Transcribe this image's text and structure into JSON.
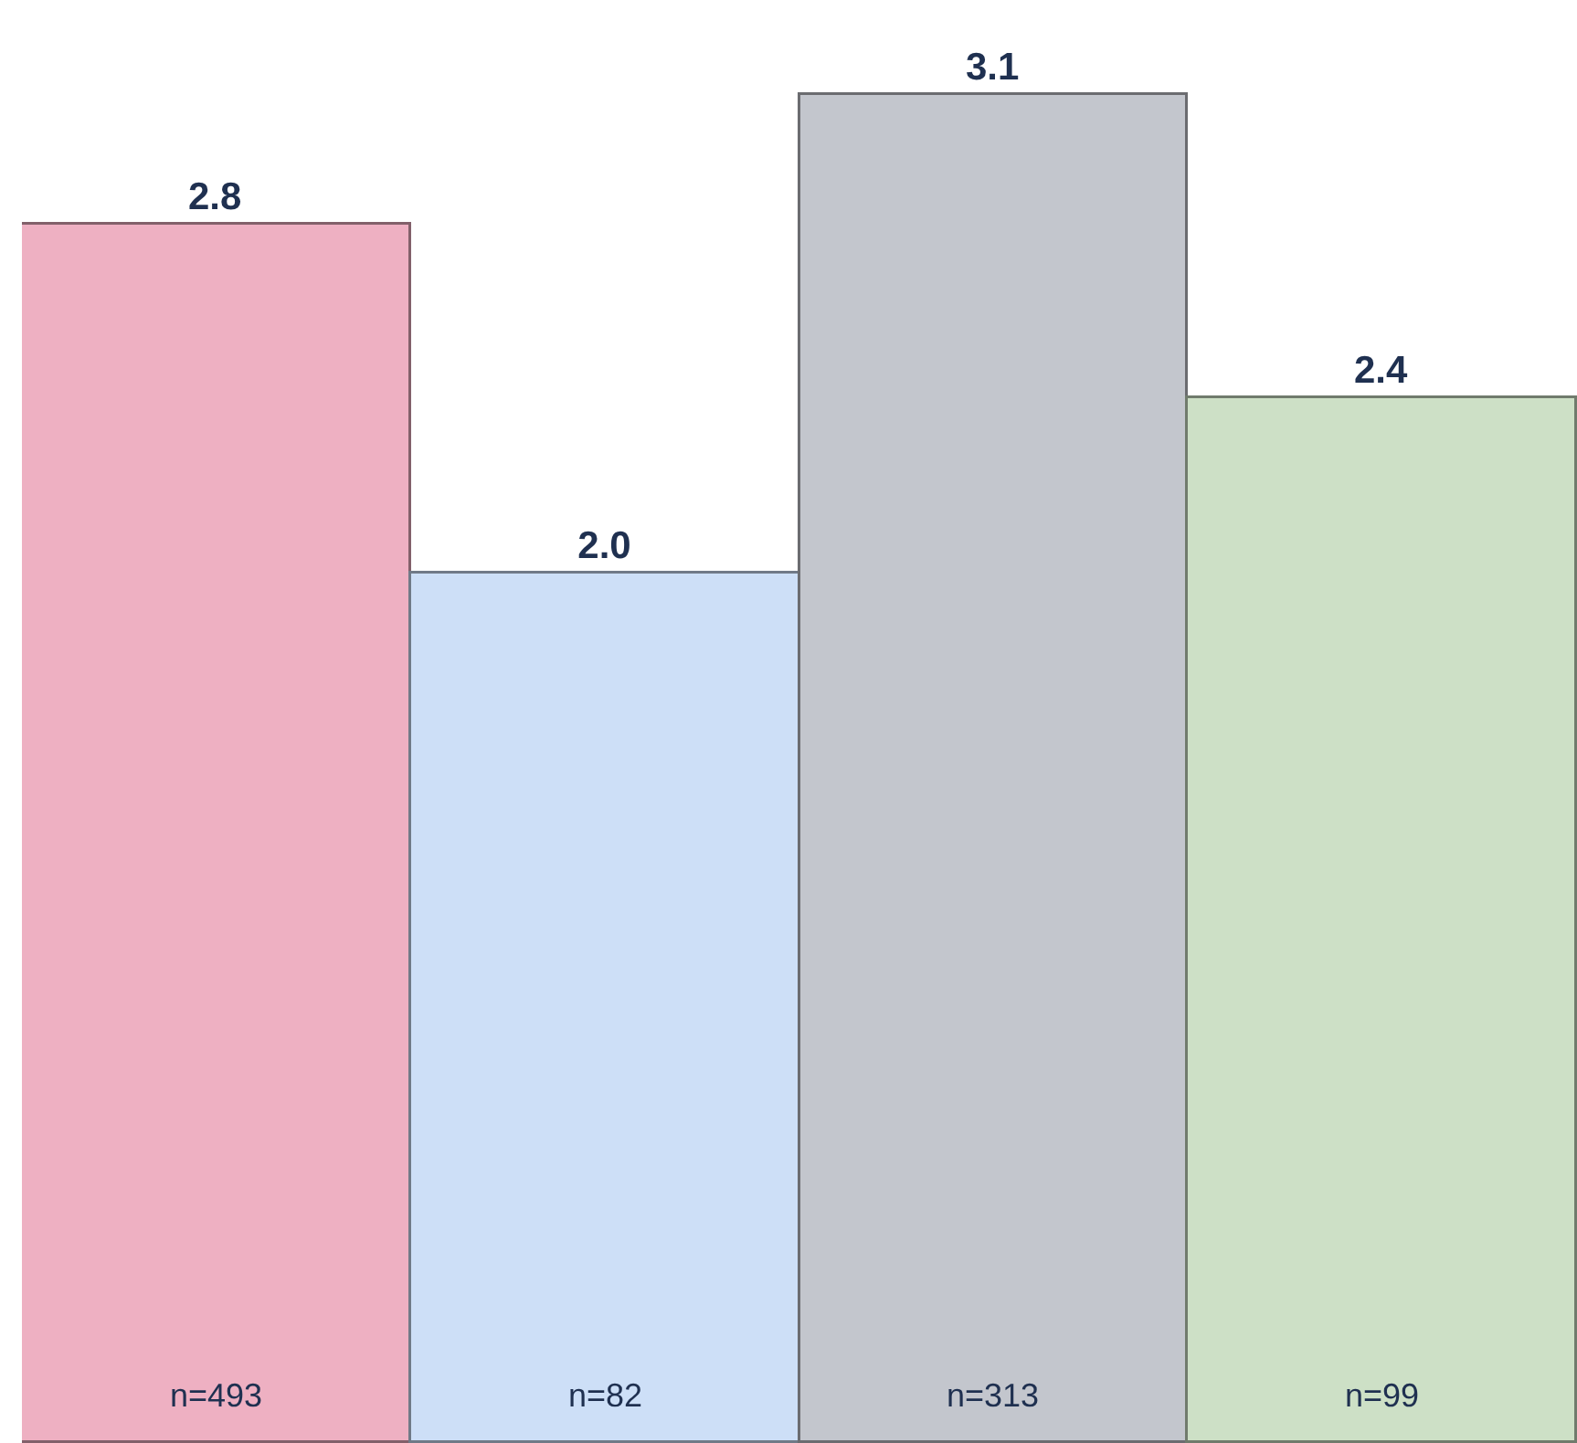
{
  "chart_data": {
    "type": "bar",
    "categories": [
      null,
      null,
      null,
      null
    ],
    "values": [
      2.8,
      2.0,
      3.1,
      2.4
    ],
    "colors": [
      "#eeb0c2",
      "#cddff7",
      "#c3c6cd",
      "#cde0c6"
    ],
    "value_labels": [
      "2.8",
      "2.0",
      "3.1",
      "2.4"
    ],
    "annotations": [
      "n=493",
      "n=82",
      "n=313",
      "n=99"
    ]
  }
}
